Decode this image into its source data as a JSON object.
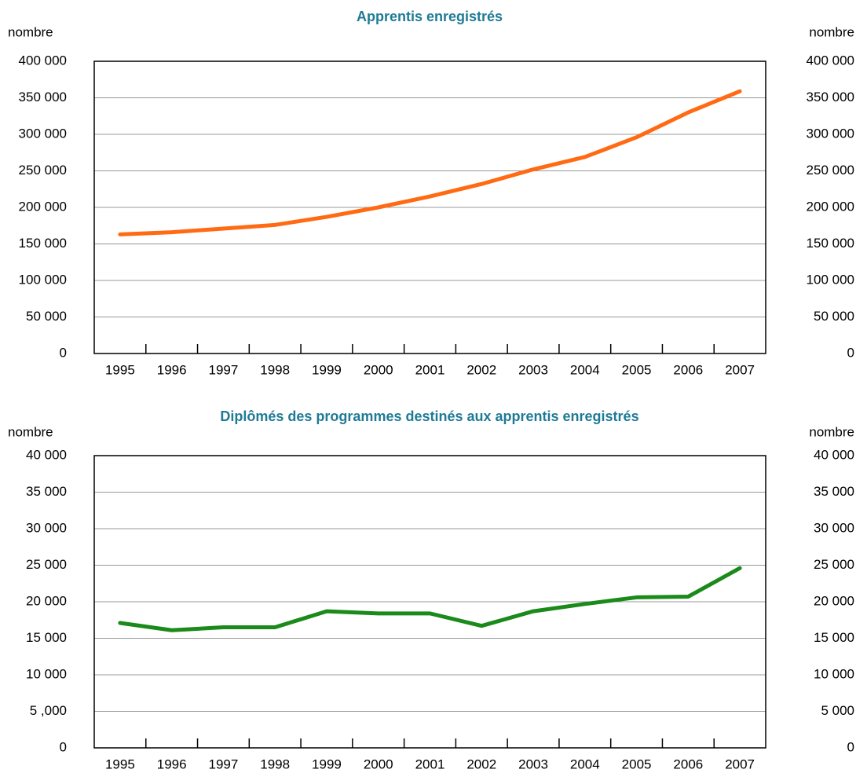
{
  "chart_data": [
    {
      "type": "line",
      "title": "Apprentis enregistrés",
      "ylabel": "nombre",
      "y2label": "nombre",
      "categories": [
        "1995",
        "1996",
        "1997",
        "1998",
        "1999",
        "2000",
        "2001",
        "2002",
        "2003",
        "2004",
        "2005",
        "2006",
        "2007"
      ],
      "series": [
        {
          "color": "#ff6a13",
          "values": [
            163000,
            166000,
            171000,
            176000,
            187000,
            200000,
            215000,
            232000,
            252000,
            269000,
            296000,
            330000,
            359000
          ]
        }
      ],
      "ylim": [
        0,
        400000
      ],
      "yticks": [
        0,
        {
          "value": 50000,
          "label": "50 000"
        },
        {
          "value": 100000,
          "label": "100 000"
        },
        {
          "value": 150000,
          "label": "150 000"
        },
        {
          "value": 200000,
          "label": "200 000"
        },
        {
          "value": 250000,
          "label": "250 000"
        },
        {
          "value": 300000,
          "label": "300 000"
        },
        {
          "value": 350000,
          "label": "350 000"
        },
        {
          "value": 400000,
          "label": "400 000"
        }
      ],
      "y2lim": [
        0,
        400000
      ],
      "y2ticks": [
        0,
        {
          "value": 50000,
          "label": "50 000"
        },
        {
          "value": 100000,
          "label": "100 000"
        },
        {
          "value": 150000,
          "label": "150 000"
        },
        {
          "value": 200000,
          "label": "200 000"
        },
        {
          "value": 250000,
          "label": "250 000"
        },
        {
          "value": 300000,
          "label": "300 000"
        },
        {
          "value": 350000,
          "label": "350 000"
        },
        {
          "value": 400000,
          "label": "400 000"
        }
      ],
      "grid": true
    },
    {
      "type": "line",
      "title": "Diplômés des programmes destinés aux apprentis enregistrés",
      "ylabel": "nombre",
      "y2label": "nombre",
      "categories": [
        "1995",
        "1996",
        "1997",
        "1998",
        "1999",
        "2000",
        "2001",
        "2002",
        "2003",
        "2004",
        "2005",
        "2006",
        "2007"
      ],
      "series": [
        {
          "color": "#1a8a1a",
          "values": [
            17100,
            16100,
            16500,
            16500,
            18700,
            18400,
            18400,
            16700,
            18700,
            19700,
            20600,
            20700,
            24600
          ]
        }
      ],
      "ylim": [
        0,
        40000
      ],
      "yticks": [
        0,
        {
          "value": 5000,
          "label": "5 ,000"
        },
        {
          "value": 10000,
          "label": "10 000"
        },
        {
          "value": 15000,
          "label": "15 000"
        },
        {
          "value": 20000,
          "label": "20 000"
        },
        {
          "value": 25000,
          "label": "25 000"
        },
        {
          "value": 30000,
          "label": "30 000"
        },
        {
          "value": 35000,
          "label": "35 000"
        },
        {
          "value": 40000,
          "label": "40 000"
        }
      ],
      "y2lim": [
        0,
        40000
      ],
      "y2ticks": [
        0,
        {
          "value": 5000,
          "label": "5 000"
        },
        {
          "value": 10000,
          "label": "10 000"
        },
        {
          "value": 15000,
          "label": "15 000"
        },
        {
          "value": 20000,
          "label": "20 000"
        },
        {
          "value": 25000,
          "label": "25 000"
        },
        {
          "value": 30000,
          "label": "30 000"
        },
        {
          "value": 35000,
          "label": "35 000"
        },
        {
          "value": 40000,
          "label": "40 000"
        }
      ],
      "grid": true
    }
  ]
}
